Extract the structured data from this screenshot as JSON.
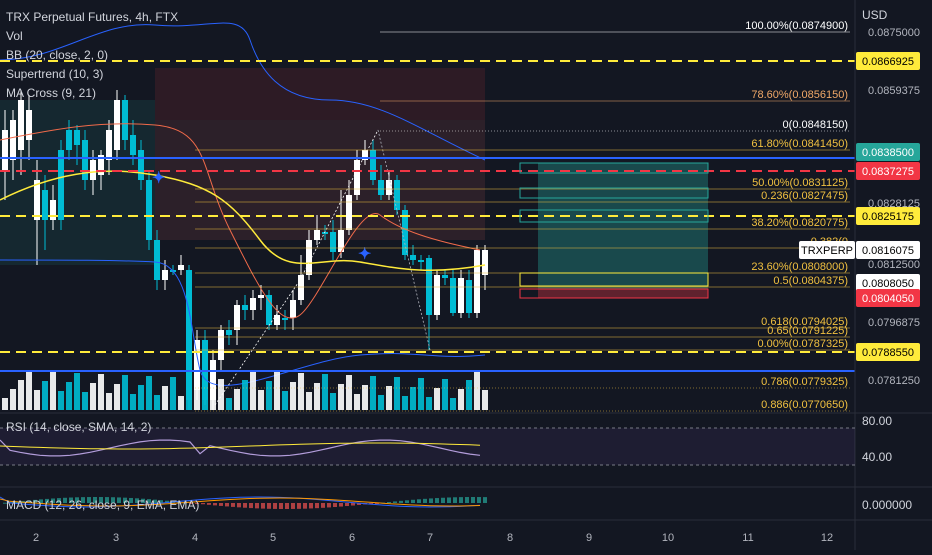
{
  "chart": {
    "title": "TRX Perpetual Futures, 4h, FTX",
    "indicators": [
      "Vol",
      "BB (20, close, 2, 0)",
      "Supertrend (10, 3)",
      "MA Cross (9, 21)"
    ],
    "currency": "USD",
    "price_ticks": [
      "0.0875000",
      "0.0859375",
      "0.0828125",
      "0.0812500",
      "0.0796875",
      "0.0781250"
    ],
    "fib_levels": [
      {
        "label": "100.00%(0.0874900)",
        "color": "#ffffff"
      },
      {
        "label": "78.60%(0.0856150)",
        "color": "#f0a868"
      },
      {
        "label": "0(0.0848150)",
        "color": "#ffffff"
      },
      {
        "label": "61.80%(0.0841450)",
        "color": "#f0c040"
      },
      {
        "label": "50.00%(0.0831125)",
        "color": "#f0c040"
      },
      {
        "label": "0.236(0.0827475)",
        "color": "#f0c040"
      },
      {
        "label": "38.20%(0.0820775)",
        "color": "#f0c040"
      },
      {
        "label": "0.382(0",
        "color": "#f0c040"
      },
      {
        "label": "23.60%(0.0808000)",
        "color": "#f0c040"
      },
      {
        "label": "0.5(0.0804375)",
        "color": "#f0c040"
      },
      {
        "label": "0.618(0.0794025)",
        "color": "#f0c040"
      },
      {
        "label": "0.65(0.0791225)",
        "color": "#f0c040"
      },
      {
        "label": "0.00%(0.0787325)",
        "color": "#f0c040"
      },
      {
        "label": "0.786(0.0779325)",
        "color": "#f0c040"
      },
      {
        "label": "0.886(0.0770650)",
        "color": "#f0c040"
      }
    ],
    "price_tags": [
      {
        "text": "0.0866925",
        "bg": "#ffeb3b",
        "fg": "#000000"
      },
      {
        "text": "0.0838500",
        "bg": "#26a69a",
        "fg": "#ffffff"
      },
      {
        "text": "0.0837275",
        "bg": "#f23645",
        "fg": "#ffffff"
      },
      {
        "text": "0.0825175",
        "bg": "#ffeb3b",
        "fg": "#000000"
      },
      {
        "text": "0.0816075",
        "bg": "#ffffff",
        "fg": "#000000",
        "prefix": "TRXPERP"
      },
      {
        "text": "0.0808050",
        "bg": "#ffffff",
        "fg": "#000000"
      },
      {
        "text": "0.0804050",
        "bg": "#f23645",
        "fg": "#ffffff"
      },
      {
        "text": "0.0788550",
        "bg": "#ffeb3b",
        "fg": "#000000"
      }
    ],
    "date_ticks": [
      "2",
      "3",
      "4",
      "5",
      "6",
      "7",
      "8",
      "9",
      "10",
      "11",
      "12"
    ]
  },
  "rsi": {
    "label": "RSI (14, close, SMA, 14, 2)",
    "ticks": [
      "80.00",
      "40.00"
    ]
  },
  "macd": {
    "label": "MACD (12, 26, close, 9, EMA, EMA)",
    "ticks": [
      "0.000000"
    ]
  },
  "colors": {
    "bg": "#131722",
    "up": "#ffffff",
    "down": "#00bcd4",
    "yellow_dash": "#ffeb3b",
    "red_dash": "#f23645",
    "blue_line": "#2962ff"
  }
}
